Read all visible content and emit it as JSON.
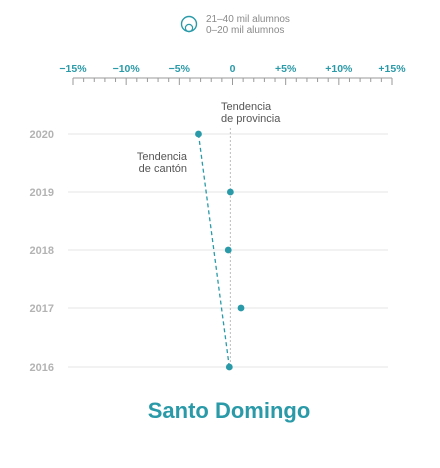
{
  "colors": {
    "accent": "#2a9aa8",
    "grid": "#e4e4e4",
    "axis": "#9a9a9a",
    "year": "#b3b3b3",
    "text": "#555555"
  },
  "legend": {
    "items": [
      {
        "label": "21–40 mil alumnos",
        "icon": "large-circle-icon"
      },
      {
        "label": "0–20 mil alumnos",
        "icon": "small-circle-icon"
      }
    ]
  },
  "annotations": {
    "provincia_line1": "Tendencia",
    "provincia_line2": "de provincia",
    "canton_line1": "Tendencia",
    "canton_line2": "de cantón"
  },
  "chart_data": {
    "type": "scatter",
    "title": "Santo Domingo",
    "xlim": [
      -15,
      15
    ],
    "x_ticks": [
      -15,
      -10,
      -5,
      0,
      5,
      10,
      15
    ],
    "x_tick_labels": [
      "−15%",
      "−10%",
      "−5%",
      "0",
      "+5%",
      "+10%",
      "+15%"
    ],
    "years": [
      "2020",
      "2019",
      "2018",
      "2017",
      "2016"
    ],
    "points": [
      {
        "year": "2020",
        "x": -3.2
      },
      {
        "year": "2019",
        "x": -0.2
      },
      {
        "year": "2018",
        "x": -0.4
      },
      {
        "year": "2017",
        "x": 0.8
      },
      {
        "year": "2016",
        "x": -0.3
      }
    ],
    "province_trend_x": -0.2,
    "canton_trend": {
      "from_year": "2020",
      "from_x": -3.2,
      "to_year": "2016",
      "to_x": -0.3
    }
  }
}
